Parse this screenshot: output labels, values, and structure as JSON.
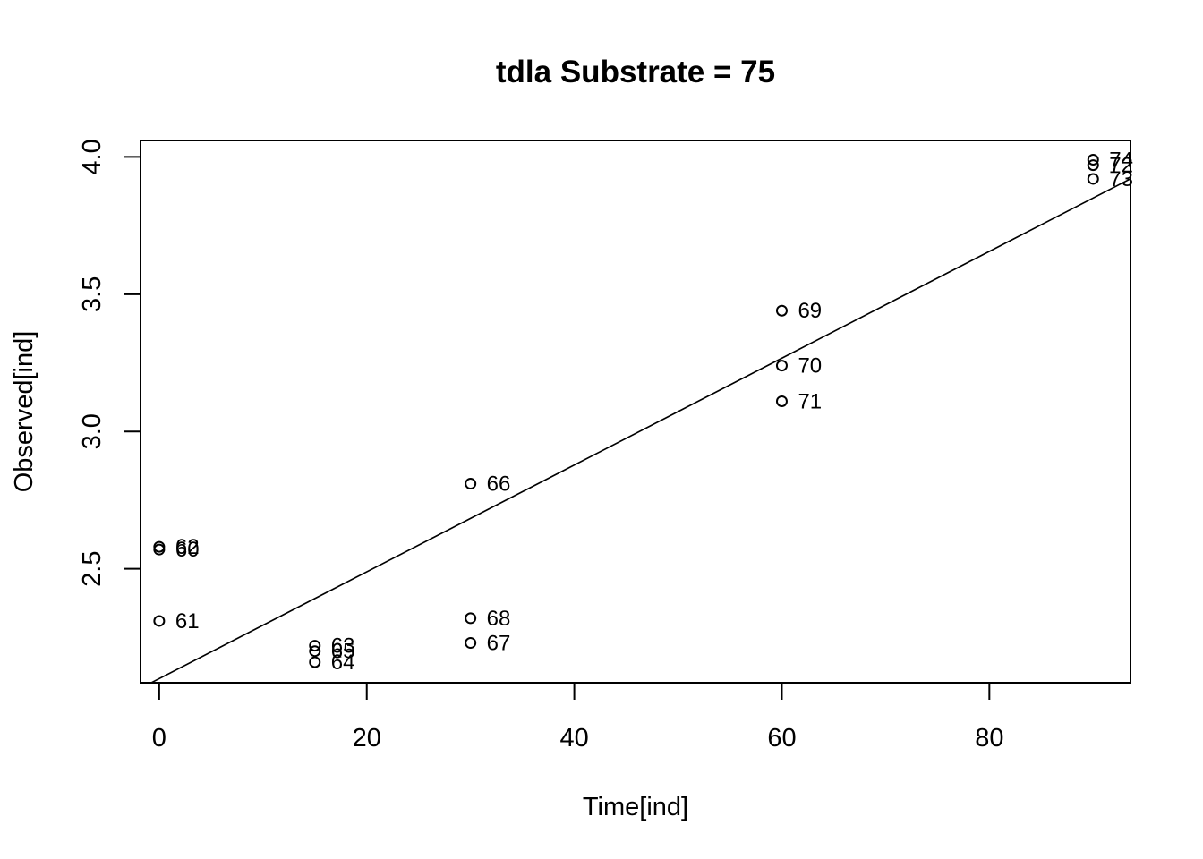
{
  "chart_data": {
    "type": "scatter",
    "title": "tdla Substrate = 75",
    "xlabel": "Time[ind]",
    "ylabel": "Observed[ind]",
    "xlim": [
      -1.8,
      93.6
    ],
    "ylim": [
      2.085,
      4.06
    ],
    "xticks": [
      0,
      20,
      40,
      60,
      80
    ],
    "yticks": [
      2.5,
      3.0,
      3.5,
      4.0
    ],
    "xtick_labels": [
      "0",
      "20",
      "40",
      "60",
      "80"
    ],
    "ytick_labels": [
      "2.5",
      "3.0",
      "3.5",
      "4.0"
    ],
    "grid": false,
    "points": [
      {
        "label": "60",
        "x": 0,
        "y": 2.57
      },
      {
        "label": "61",
        "x": 0,
        "y": 2.31
      },
      {
        "label": "62",
        "x": 0,
        "y": 2.58
      },
      {
        "label": "63",
        "x": 15,
        "y": 2.22
      },
      {
        "label": "64",
        "x": 15,
        "y": 2.16
      },
      {
        "label": "65",
        "x": 15,
        "y": 2.2
      },
      {
        "label": "66",
        "x": 30,
        "y": 2.81
      },
      {
        "label": "67",
        "x": 30,
        "y": 2.23
      },
      {
        "label": "68",
        "x": 30,
        "y": 2.32
      },
      {
        "label": "69",
        "x": 60,
        "y": 3.44
      },
      {
        "label": "70",
        "x": 60,
        "y": 3.24
      },
      {
        "label": "71",
        "x": 60,
        "y": 3.11
      },
      {
        "label": "72",
        "x": 90,
        "y": 3.97
      },
      {
        "label": "73",
        "x": 90,
        "y": 3.92
      },
      {
        "label": "74",
        "x": 90,
        "y": 3.99
      }
    ],
    "fit_line": {
      "intercept": 2.1,
      "slope": 0.01945
    }
  }
}
